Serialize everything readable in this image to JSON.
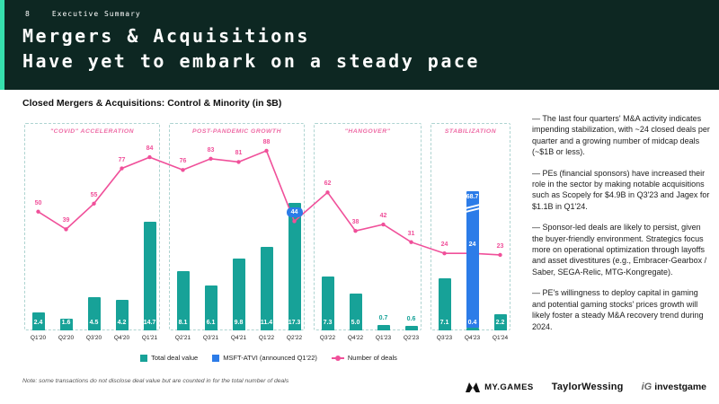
{
  "slide": {
    "page_number": "8",
    "kicker": "Executive Summary",
    "title_line1": "Mergers & Acquisitions",
    "title_line2": "Have yet to embark on a steady pace"
  },
  "chart": {
    "title": "Closed Mergers & Acquisitions: Control & Minority (in $B)",
    "legend": [
      {
        "label": "Total deal value",
        "color": "#17a298"
      },
      {
        "label": "MSFT-ATVI (announced Q1'22)",
        "color": "#2c7ce8"
      },
      {
        "label": "Number of deals",
        "color": "#f0509a"
      }
    ],
    "note": "Note: some transactions do not disclose deal value but are counted in for the total number of deals"
  },
  "chart_data": {
    "type": "bar+line",
    "categories": [
      "Q1'20",
      "Q2'20",
      "Q3'20",
      "Q4'20",
      "Q1'21",
      "Q2'21",
      "Q3'21",
      "Q4'21",
      "Q1'22",
      "Q2'22",
      "Q3'22",
      "Q4'22",
      "Q1'23",
      "Q2'23",
      "Q3'23",
      "Q4'23",
      "Q1'24"
    ],
    "sections": [
      {
        "label": "\"COVID\" ACCELERATION",
        "from": 0,
        "to": 4
      },
      {
        "label": "POST-PANDEMIC GROWTH",
        "from": 5,
        "to": 9
      },
      {
        "label": "\"HANGOVER\"",
        "from": 10,
        "to": 13
      },
      {
        "label": "STABILIZATION",
        "from": 14,
        "to": 16
      }
    ],
    "series": [
      {
        "name": "Total deal value ($B)",
        "type": "bar",
        "color": "#17a298",
        "values": [
          2.4,
          1.6,
          4.5,
          4.2,
          14.7,
          8.1,
          6.1,
          9.8,
          11.4,
          17.3,
          7.3,
          5.0,
          0.7,
          0.6,
          7.1,
          0.4,
          2.2
        ]
      },
      {
        "name": "MSFT-ATVI (announced Q1'22)",
        "type": "bar",
        "color": "#2c7ce8",
        "values": [
          null,
          null,
          null,
          null,
          null,
          null,
          null,
          null,
          null,
          null,
          null,
          null,
          null,
          null,
          null,
          68.7,
          null
        ]
      },
      {
        "name": "Number of deals",
        "type": "line",
        "color": "#f0509a",
        "values": [
          50,
          39,
          55,
          77,
          84,
          76,
          83,
          81,
          88,
          44,
          62,
          38,
          42,
          31,
          24,
          24,
          23
        ]
      }
    ],
    "msft_atvi": {
      "index": 15,
      "value": 68.7,
      "axis_break": true
    },
    "deal_label_styles": {
      "9": "badge",
      "15": "white"
    }
  },
  "insights": [
    "— The last four quarters' M&A activity indicates impending stabilization, with ~24 closed deals per quarter and a growing number of midcap deals (~$1B or less).",
    "— PEs (financial sponsors) have increased their role in the sector by making notable acquisitions such as Scopely for $4.9B in Q3'23 and Jagex for $1.1B in Q1'24.",
    "— Sponsor-led deals are likely to persist, given the buyer-friendly environment. Strategics focus more on operational optimization through layoffs and asset divestitures (e.g., Embracer-Gearbox / Saber, SEGA-Relic, MTG-Kongregate).",
    "— PE's willingness to deploy capital in gaming and potential gaming stocks' prices growth will likely foster a steady M&A recovery trend during 2024."
  ],
  "footer": {
    "mygames": "MY.GAMES",
    "taylorwessing": "TaylorWessing",
    "ig_mark": "iG",
    "investgame": "investgame"
  }
}
